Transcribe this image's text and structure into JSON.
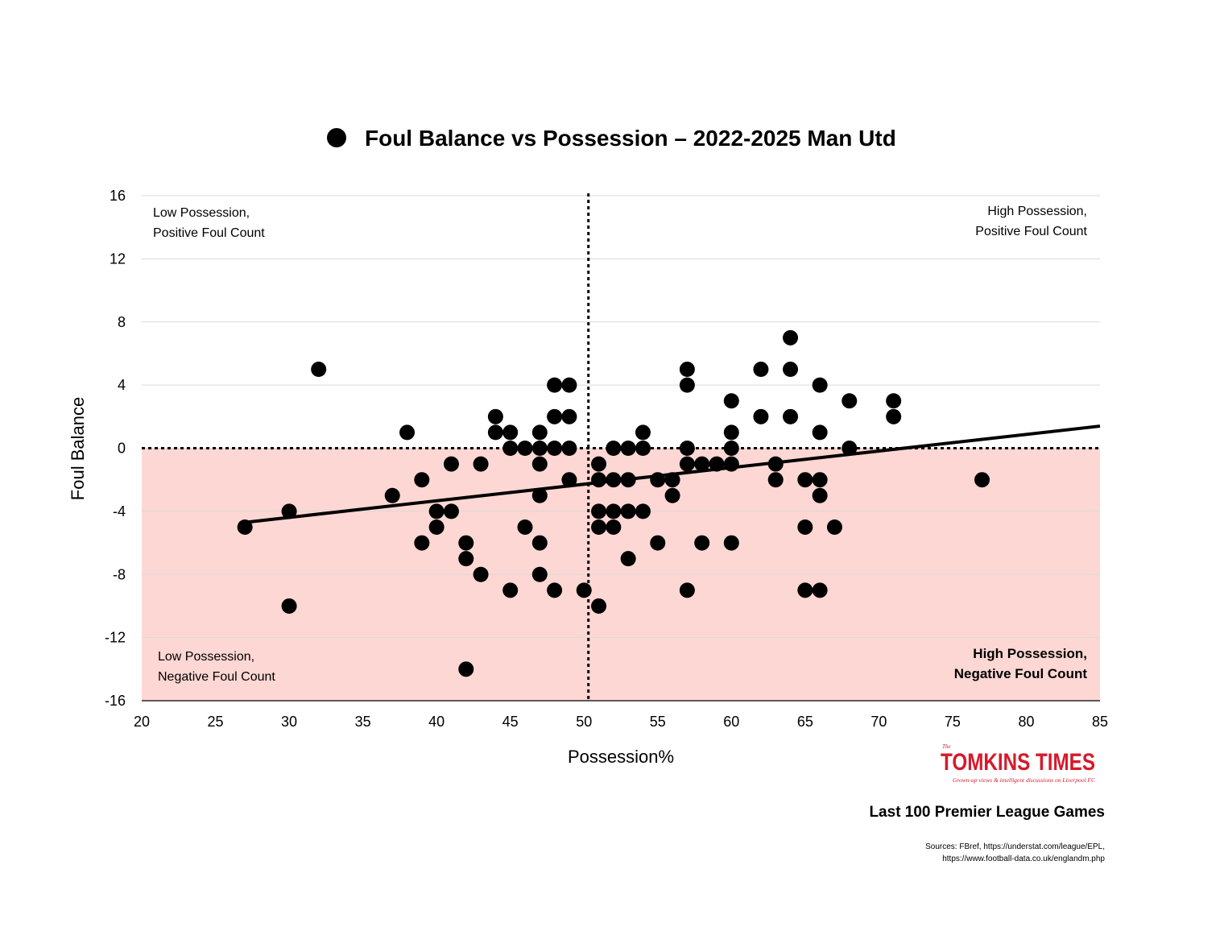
{
  "chart_data": {
    "type": "scatter",
    "title": "Foul Balance vs Possession – 2022-2025 Man Utd",
    "xlabel": "Possession%",
    "ylabel": "Foul Balance",
    "xlim": [
      20,
      85
    ],
    "ylim": [
      -16,
      16
    ],
    "xticks": [
      "20",
      "25",
      "30",
      "35",
      "40",
      "45",
      "50",
      "55",
      "60",
      "65",
      "70",
      "75",
      "80",
      "85"
    ],
    "yticks": [
      "16",
      "12",
      "8",
      "4",
      "0",
      "-4",
      "-8",
      "-12",
      "-16"
    ],
    "grid": "horizontal",
    "legend": "top-center",
    "reference_lines": {
      "x": 50.3,
      "y": 0,
      "style": "dotted"
    },
    "shaded_region": {
      "y_from": -16,
      "y_to": 0,
      "color": "#fdd7d3"
    },
    "trendline": {
      "x": [
        27,
        85
      ],
      "y": [
        -4.7,
        1.4
      ]
    },
    "annotations": {
      "top_left": [
        "Low Possession,",
        "Positive Foul Count"
      ],
      "top_right": [
        "High Possession,",
        "Positive Foul Count"
      ],
      "bottom_left": [
        "Low Possession,",
        "Negative Foul Count"
      ],
      "bottom_right": [
        "High Possession,",
        "Negative Foul Count"
      ]
    },
    "series": [
      {
        "name": "Foul Balance vs Possession – 2022-2025 Man Utd",
        "color": "#000000",
        "points": [
          [
            27,
            -5
          ],
          [
            30,
            -4
          ],
          [
            30,
            -10
          ],
          [
            32,
            5
          ],
          [
            37,
            -3
          ],
          [
            38,
            1
          ],
          [
            39,
            -2
          ],
          [
            39,
            -6
          ],
          [
            40,
            -4
          ],
          [
            40,
            -5
          ],
          [
            41,
            -1
          ],
          [
            41,
            -4
          ],
          [
            42,
            -6
          ],
          [
            42,
            -7
          ],
          [
            42,
            -14
          ],
          [
            43,
            -1
          ],
          [
            43,
            -8
          ],
          [
            44,
            2
          ],
          [
            44,
            1
          ],
          [
            45,
            1
          ],
          [
            45,
            0
          ],
          [
            45,
            -9
          ],
          [
            46,
            0
          ],
          [
            46,
            -5
          ],
          [
            47,
            1
          ],
          [
            47,
            0
          ],
          [
            47,
            -1
          ],
          [
            47,
            -3
          ],
          [
            47,
            -6
          ],
          [
            47,
            -8
          ],
          [
            48,
            4
          ],
          [
            48,
            2
          ],
          [
            48,
            0
          ],
          [
            48,
            -9
          ],
          [
            49,
            4
          ],
          [
            49,
            2
          ],
          [
            49,
            0
          ],
          [
            49,
            -2
          ],
          [
            50,
            -9
          ],
          [
            51,
            -1
          ],
          [
            51,
            -2
          ],
          [
            51,
            -4
          ],
          [
            51,
            -5
          ],
          [
            51,
            -10
          ],
          [
            52,
            0
          ],
          [
            52,
            -2
          ],
          [
            52,
            -4
          ],
          [
            52,
            -5
          ],
          [
            53,
            0
          ],
          [
            53,
            -2
          ],
          [
            53,
            -4
          ],
          [
            53,
            -7
          ],
          [
            54,
            1
          ],
          [
            54,
            0
          ],
          [
            54,
            -4
          ],
          [
            55,
            -2
          ],
          [
            55,
            -6
          ],
          [
            56,
            -2
          ],
          [
            56,
            -3
          ],
          [
            57,
            5
          ],
          [
            57,
            4
          ],
          [
            57,
            0
          ],
          [
            57,
            -1
          ],
          [
            57,
            -9
          ],
          [
            58,
            -1
          ],
          [
            58,
            -6
          ],
          [
            59,
            -1
          ],
          [
            60,
            3
          ],
          [
            60,
            1
          ],
          [
            60,
            0
          ],
          [
            60,
            -1
          ],
          [
            60,
            -6
          ],
          [
            62,
            5
          ],
          [
            62,
            2
          ],
          [
            63,
            -1
          ],
          [
            63,
            -2
          ],
          [
            64,
            7
          ],
          [
            64,
            5
          ],
          [
            64,
            2
          ],
          [
            65,
            -2
          ],
          [
            65,
            -5
          ],
          [
            65,
            -9
          ],
          [
            66,
            4
          ],
          [
            66,
            1
          ],
          [
            66,
            -2
          ],
          [
            66,
            -3
          ],
          [
            66,
            -9
          ],
          [
            67,
            -5
          ],
          [
            68,
            3
          ],
          [
            68,
            0
          ],
          [
            71,
            3
          ],
          [
            71,
            2
          ],
          [
            77,
            -2
          ]
        ]
      }
    ]
  },
  "footer": {
    "title": "Last 100 Premier League Games",
    "sources_line1": "Sources: FBref, https://understat.com/league/EPL,",
    "sources_line2": "https://www.football-data.co.uk/englandm.php"
  },
  "logo": {
    "small": "The",
    "main": "TOMKINS TIMES",
    "tagline": "Grown-up views & intelligent discussions on Liverpool FC"
  },
  "colors": {
    "shade": "#fdd7d3",
    "grid": "#d9d9d9",
    "logo": "#d7192b"
  }
}
